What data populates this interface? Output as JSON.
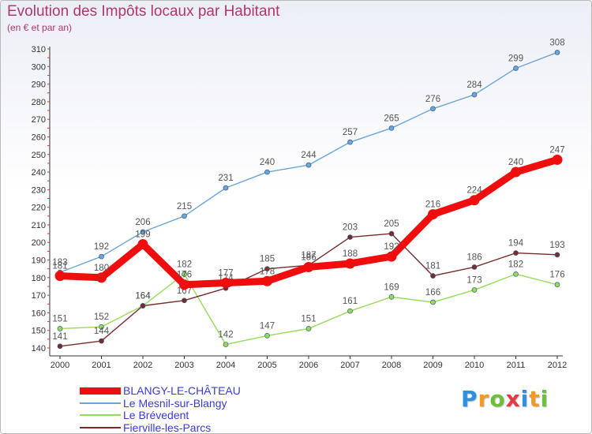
{
  "title": "Evolution des Impôts locaux par Habitant",
  "subtitle": "(en € et par an)",
  "logo": {
    "letters": [
      "P",
      "r",
      "o",
      "x",
      "i",
      "t",
      "i"
    ],
    "colors": [
      "#2f8fe0",
      "#f29a21",
      "#6cbf3a",
      "#e63946",
      "#2f8fe0",
      "#f29a21",
      "#6cbf3a"
    ]
  },
  "chart_data": {
    "type": "line",
    "x": [
      2000,
      2001,
      2002,
      2003,
      2004,
      2005,
      2006,
      2007,
      2008,
      2009,
      2010,
      2011,
      2012
    ],
    "ylim": [
      140,
      310
    ],
    "yticks": [
      140,
      150,
      160,
      170,
      180,
      190,
      200,
      210,
      220,
      230,
      240,
      250,
      260,
      270,
      280,
      290,
      300,
      310
    ],
    "grid": false,
    "series": [
      {
        "name": "Le Mesnil-sur-Blangy",
        "color": "#6aa5dc",
        "values": [
          183,
          192,
          206,
          215,
          231,
          240,
          244,
          257,
          265,
          276,
          284,
          299,
          308
        ]
      },
      {
        "name": "Le Brévedent",
        "color": "#97db5a",
        "values": [
          151,
          152,
          164,
          182,
          142,
          147,
          151,
          161,
          169,
          166,
          173,
          182,
          176
        ]
      },
      {
        "name": "Fierville-les-Parcs",
        "color": "#7a2a2a",
        "values": [
          141,
          144,
          164,
          167,
          174,
          185,
          187,
          203,
          205,
          181,
          186,
          194,
          193
        ]
      },
      {
        "name": "BLANGY-LE-CHÂTEAU",
        "color": "#ef0d0d",
        "values": [
          181,
          180,
          199,
          176,
          177,
          178,
          186,
          188,
          192,
          216,
          224,
          240,
          247
        ]
      }
    ]
  }
}
